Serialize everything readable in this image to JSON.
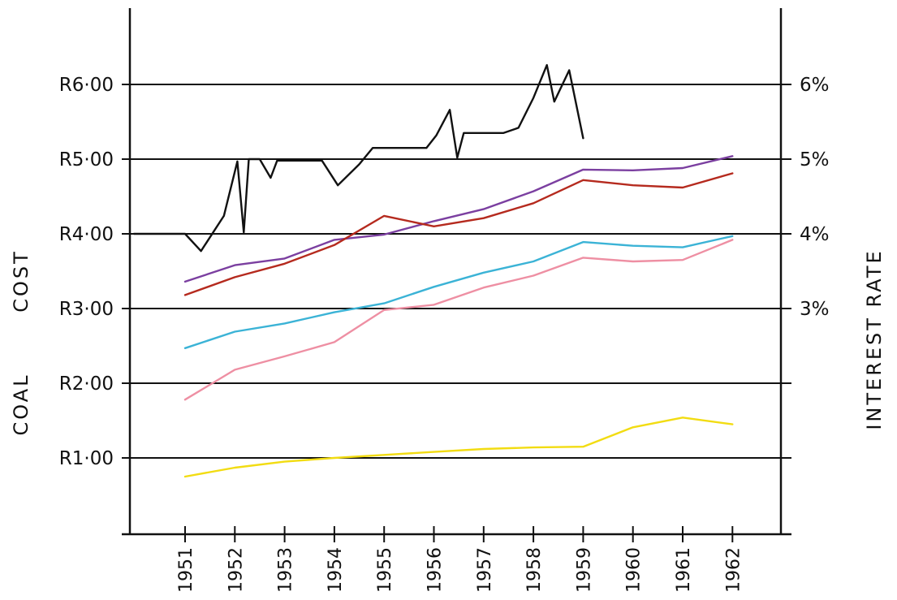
{
  "chart_data": {
    "type": "line",
    "title": "",
    "ylabel_left_parts": [
      "COAL",
      "COST"
    ],
    "ylabel_right": "INTEREST RATE",
    "x": [
      "1951",
      "1952",
      "1953",
      "1954",
      "1955",
      "1956",
      "1957",
      "1958",
      "1959",
      "1960",
      "1961",
      "1962"
    ],
    "ylim_left": [
      0,
      7
    ],
    "left_ticks": [
      {
        "value": 1,
        "label": "R1·00"
      },
      {
        "value": 2,
        "label": "R2·00"
      },
      {
        "value": 3,
        "label": "R3·00"
      },
      {
        "value": 4,
        "label": "R4·00"
      },
      {
        "value": 5,
        "label": "R5·00"
      },
      {
        "value": 6,
        "label": "R6·00"
      }
    ],
    "right_ticks": [
      {
        "value": 3,
        "label": "3%"
      },
      {
        "value": 4,
        "label": "4%"
      },
      {
        "value": 5,
        "label": "5%"
      },
      {
        "value": 6,
        "label": "6%"
      }
    ],
    "grid": true,
    "series": [
      {
        "color": "#7b3fa0",
        "axis": "left",
        "values": [
          3.36,
          3.58,
          3.67,
          3.92,
          3.99,
          4.17,
          4.33,
          4.57,
          4.86,
          4.85,
          4.88,
          5.04
        ]
      },
      {
        "color": "#b52a1e",
        "axis": "left",
        "values": [
          3.18,
          3.42,
          3.6,
          3.85,
          4.24,
          4.1,
          4.21,
          4.41,
          4.72,
          4.65,
          4.62,
          4.81
        ]
      },
      {
        "color": "#3bb3d6",
        "axis": "left",
        "values": [
          2.47,
          2.69,
          2.8,
          2.95,
          3.07,
          3.29,
          3.48,
          3.63,
          3.89,
          3.84,
          3.82,
          3.97
        ]
      },
      {
        "color": "#ee8fa3",
        "axis": "left",
        "values": [
          1.78,
          2.18,
          2.36,
          2.55,
          2.98,
          3.05,
          3.28,
          3.44,
          3.68,
          3.63,
          3.65,
          3.92
        ]
      },
      {
        "color": "#f2dc12",
        "axis": "left",
        "values": [
          0.75,
          0.87,
          0.95,
          1.0,
          1.04,
          1.08,
          1.12,
          1.14,
          1.15,
          1.41,
          1.54,
          1.45
        ]
      },
      {
        "color": "#111111",
        "axis": "right",
        "points": [
          [
            0.0,
            4.0
          ],
          [
            0.32,
            3.77
          ],
          [
            0.78,
            4.24
          ],
          [
            1.05,
            4.97
          ],
          [
            1.18,
            4.02
          ],
          [
            1.28,
            5.0
          ],
          [
            1.5,
            5.0
          ],
          [
            1.72,
            4.75
          ],
          [
            1.85,
            4.98
          ],
          [
            2.75,
            4.98
          ],
          [
            3.07,
            4.65
          ],
          [
            3.5,
            4.93
          ],
          [
            3.77,
            5.15
          ],
          [
            4.85,
            5.15
          ],
          [
            5.05,
            5.32
          ],
          [
            5.32,
            5.66
          ],
          [
            5.47,
            5.02
          ],
          [
            5.6,
            5.35
          ],
          [
            6.4,
            5.35
          ],
          [
            6.7,
            5.42
          ],
          [
            7.0,
            5.82
          ],
          [
            7.27,
            6.26
          ],
          [
            7.42,
            5.77
          ],
          [
            7.72,
            6.19
          ],
          [
            8.0,
            5.28
          ]
        ]
      }
    ]
  }
}
